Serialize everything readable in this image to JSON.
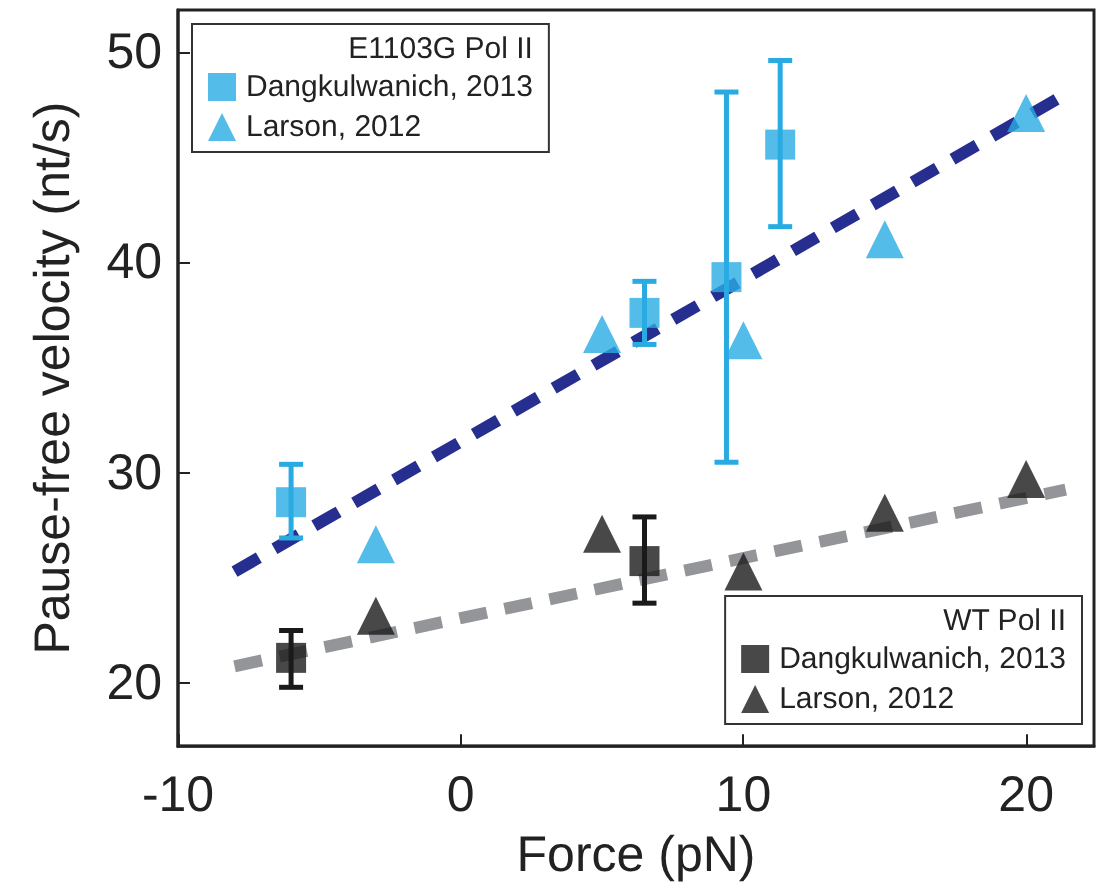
{
  "chart_data": {
    "type": "scatter",
    "xlabel": "Force (pN)",
    "ylabel": "Pause-free velocity (nt/s)",
    "legend_title": [
      "E1103G Pol II",
      "WT Pol II"
    ],
    "legend": [
      "top left",
      "bottom right"
    ],
    "xlim": [
      -10,
      22.4
    ],
    "ylim": [
      17,
      52
    ],
    "xticks": [
      -10,
      0,
      10,
      20
    ],
    "yticks": [
      20,
      30,
      40,
      50
    ],
    "grid": false,
    "series": [
      {
        "name": "Dangkulwanich, 2013",
        "color": "#29abe2",
        "marker": "square",
        "x": [
          -6,
          6.5,
          9.4,
          11.3
        ],
        "values": [
          28.6,
          37.6,
          39.3,
          45.6
        ],
        "errors": [
          [
            26.9,
            30.4
          ],
          [
            36.1,
            39.1
          ],
          [
            30.5,
            48.1
          ],
          [
            41.7,
            49.6
          ]
        ]
      },
      {
        "name": "Larson, 2012",
        "color": "#29abe2",
        "marker": "triangle",
        "x": [
          -3,
          5,
          10,
          15,
          20
        ],
        "values": [
          26.6,
          36.6,
          36.3,
          41.1,
          47.1
        ]
      },
      {
        "type": "line",
        "color": "#262f8f",
        "line_style": "dashed",
        "x": [
          -8,
          21.4
        ],
        "values": [
          25.3,
          48.0
        ]
      },
      {
        "name": "Dangkulwanich, 2013",
        "color": "#1a1a1a",
        "marker": "square",
        "x": [
          -6,
          6.5
        ],
        "values": [
          21.2,
          25.8
        ],
        "errors": [
          [
            19.8,
            22.5
          ],
          [
            23.8,
            27.9
          ]
        ]
      },
      {
        "name": "Larson, 2012",
        "color": "#1a1a1a",
        "marker": "triangle",
        "x": [
          -3,
          5,
          10,
          15,
          20
        ],
        "values": [
          23.2,
          27.1,
          25.3,
          28.1,
          29.7
        ]
      },
      {
        "type": "line",
        "color": "#939598",
        "line_style": "dashed",
        "x": [
          -8,
          21.4
        ],
        "values": [
          20.8,
          29.2
        ]
      }
    ]
  }
}
